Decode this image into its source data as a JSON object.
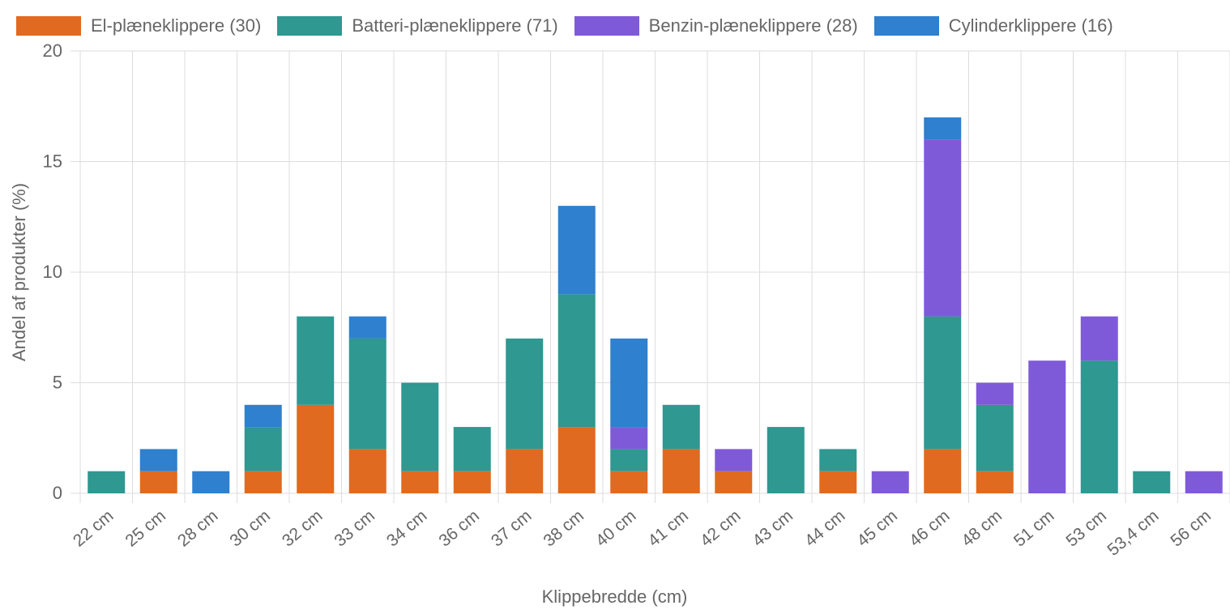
{
  "chart_data": {
    "type": "bar",
    "stacked": true,
    "xlabel": "Klippebredde (cm)",
    "ylabel": "Andel af produkter (%)",
    "ylim": [
      0,
      20
    ],
    "yticks": [
      0,
      5,
      10,
      15,
      20
    ],
    "grid": true,
    "legend_position": "top",
    "categories": [
      "22 cm",
      "25 cm",
      "28 cm",
      "30 cm",
      "32 cm",
      "33 cm",
      "34 cm",
      "36 cm",
      "37 cm",
      "38 cm",
      "40 cm",
      "41 cm",
      "42 cm",
      "43 cm",
      "44 cm",
      "45 cm",
      "46 cm",
      "48 cm",
      "51 cm",
      "53 cm",
      "53,4 cm",
      "56 cm"
    ],
    "series": [
      {
        "name": "El-plæneklippere (30)",
        "color": "#e06a20",
        "values": [
          0,
          1,
          0,
          1,
          4,
          2,
          1,
          1,
          2,
          3,
          1,
          2,
          1,
          0,
          1,
          0,
          2,
          1,
          0,
          0,
          0,
          0
        ]
      },
      {
        "name": "Batteri-plæneklippere (71)",
        "color": "#2e9891",
        "values": [
          1,
          0,
          0,
          2,
          4,
          5,
          4,
          2,
          5,
          6,
          1,
          2,
          0,
          3,
          1,
          0,
          6,
          3,
          0,
          6,
          1,
          0
        ]
      },
      {
        "name": "Benzin-plæneklippere (28)",
        "color": "#7f5ad8",
        "values": [
          0,
          0,
          0,
          0,
          0,
          0,
          0,
          0,
          0,
          0,
          1,
          0,
          1,
          0,
          0,
          1,
          8,
          1,
          6,
          2,
          0,
          1
        ]
      },
      {
        "name": "Cylinderklippere (16)",
        "color": "#2f80ce",
        "values": [
          0,
          1,
          1,
          1,
          0,
          1,
          0,
          0,
          0,
          4,
          4,
          0,
          0,
          0,
          0,
          0,
          1,
          0,
          0,
          0,
          0,
          0
        ]
      }
    ]
  }
}
